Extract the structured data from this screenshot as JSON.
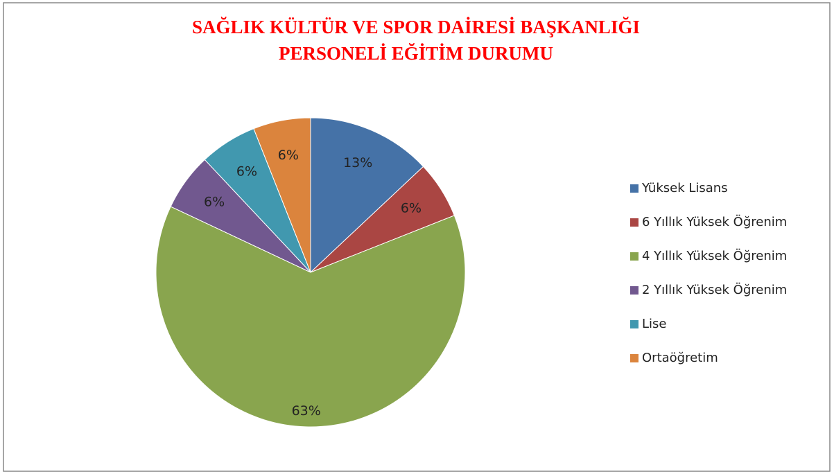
{
  "chart_data": {
    "type": "pie",
    "title": [
      "SAĞLIK KÜLTÜR VE SPOR DAİRESİ BAŞKANLIĞI",
      "PERSONELİ EĞİTİM DURUMU"
    ],
    "categories": [
      "Yüksek Lisans",
      "6 Yıllık Yüksek Öğrenim",
      "4 Yıllık Yüksek Öğrenim",
      "2 Yıllık Yüksek Öğrenim",
      "Lise",
      "Ortaöğretim"
    ],
    "values": [
      13,
      6,
      63,
      6,
      6,
      6
    ],
    "value_labels": [
      "13%",
      "6%",
      "63%",
      "6%",
      "6%",
      "6%"
    ],
    "colors": [
      "#4572a7",
      "#aa4643",
      "#89a54e",
      "#71588f",
      "#4198af",
      "#db843d"
    ],
    "legend": "right"
  }
}
